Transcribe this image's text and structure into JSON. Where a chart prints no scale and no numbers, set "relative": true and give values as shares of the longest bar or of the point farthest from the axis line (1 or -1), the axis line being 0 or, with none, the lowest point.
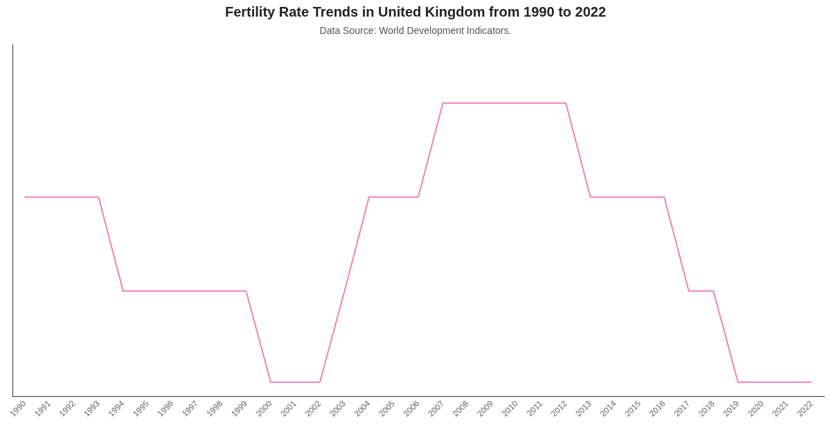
{
  "chart_data": {
    "type": "line",
    "title": "Fertility Rate Trends in United Kingdom from 1990 to 2022",
    "subtitle": "Data Source: World Development Indicators.",
    "relative": true,
    "categories": [
      "1990",
      "1991",
      "1992",
      "1993",
      "1994",
      "1995",
      "1996",
      "1997",
      "1998",
      "1999",
      "2000",
      "2001",
      "2002",
      "2003",
      "2004",
      "2005",
      "2006",
      "2007",
      "2008",
      "2009",
      "2010",
      "2011",
      "2012",
      "2013",
      "2014",
      "2015",
      "2016",
      "2017",
      "2018",
      "2019",
      "2020",
      "2021",
      "2022"
    ],
    "series": [
      {
        "color": "#f082b4",
        "values": [
          0.68,
          0.68,
          0.68,
          0.68,
          0.36,
          0.36,
          0.36,
          0.36,
          0.36,
          0.36,
          0.05,
          0.05,
          0.05,
          0.36,
          0.68,
          0.68,
          0.68,
          1,
          1,
          1,
          1,
          1,
          1,
          0.68,
          0.68,
          0.68,
          0.68,
          0.36,
          0.36,
          0.05,
          0.05,
          0.05,
          0.05
        ]
      }
    ],
    "grid": false,
    "legend": false,
    "marker": "none",
    "line_style": "solid"
  }
}
